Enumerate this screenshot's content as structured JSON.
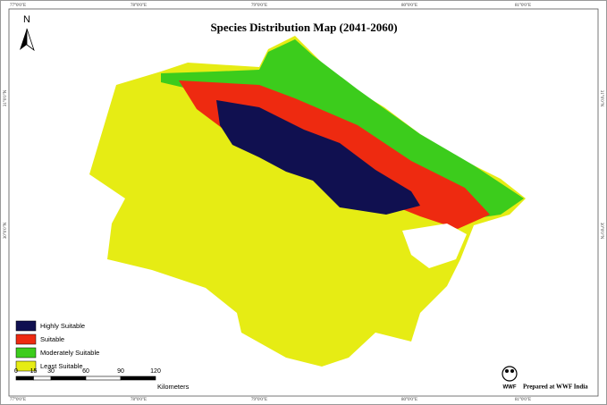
{
  "title": "Species Distribution Map (2041-2060)",
  "north_arrow": {
    "label": "N"
  },
  "legend": [
    {
      "label": "Highly Suitable",
      "color": "#101050"
    },
    {
      "label": "Suitable",
      "color": "#ee2a10"
    },
    {
      "label": "Moderately Suitable",
      "color": "#3ccc1c"
    },
    {
      "label": "Least Suitable",
      "color": "#e6ec14"
    }
  ],
  "scale_bar": {
    "ticks": [
      0,
      15,
      30,
      60,
      90,
      120
    ],
    "unit": "Kilometers"
  },
  "graticule": {
    "longitudes": [
      "77°0'0\"E",
      "78°0'0\"E",
      "79°0'0\"E",
      "80°0'0\"E",
      "81°0'0\"E"
    ],
    "latitudes": [
      "31°0'0\"N",
      "30°0'0\"N"
    ]
  },
  "credit": {
    "logo": "WWF",
    "text": "Prepared at WWF India"
  }
}
